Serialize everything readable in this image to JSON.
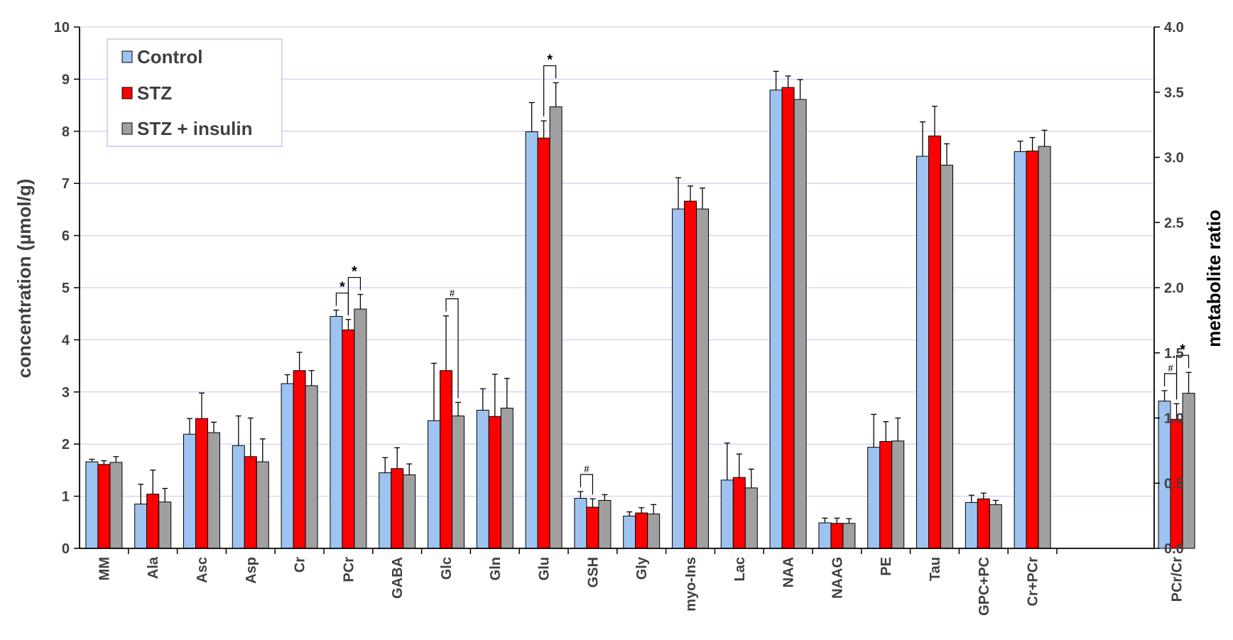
{
  "chart_data": {
    "type": "bar",
    "categories": [
      "MM",
      "Ala",
      "Asc",
      "Asp",
      "Cr",
      "PCr",
      "GABA",
      "Glc",
      "Gln",
      "Glu",
      "GSH",
      "Gly",
      "myo-Ins",
      "Lac",
      "NAA",
      "NAAG",
      "PE",
      "Tau",
      "GPC+PC",
      "Cr+PCr",
      "PCr/Cr"
    ],
    "ylabel": "concentration (µmol/g)",
    "y2label": "metabolite ratio",
    "ylim": [
      0,
      10
    ],
    "y2lim": [
      0,
      4.0
    ],
    "yticks": [
      "0",
      "1",
      "2",
      "3",
      "4",
      "5",
      "6",
      "7",
      "8",
      "9",
      "10"
    ],
    "y2ticks": [
      "0.0",
      "0.5",
      "1.0",
      "1.5",
      "2.0",
      "2.5",
      "3.0",
      "3.5",
      "4.0"
    ],
    "grid": true,
    "legend_position": "top-left",
    "series": [
      {
        "name": "Control",
        "color": "#9dc3f0",
        "values": [
          1.66,
          0.85,
          2.19,
          1.97,
          3.16,
          4.45,
          1.45,
          2.45,
          2.65,
          7.99,
          0.96,
          0.62,
          6.51,
          1.31,
          8.79,
          0.49,
          1.94,
          7.52,
          0.88,
          7.61,
          1.13
        ],
        "errors": [
          0.05,
          0.38,
          0.3,
          0.57,
          0.17,
          0.12,
          0.29,
          1.1,
          0.41,
          0.56,
          0.13,
          0.08,
          0.6,
          0.71,
          0.36,
          0.09,
          0.63,
          0.66,
          0.14,
          0.2,
          0.08
        ]
      },
      {
        "name": "STZ",
        "color": "#ff0000",
        "values": [
          1.61,
          1.04,
          2.49,
          1.76,
          3.41,
          4.19,
          1.53,
          3.41,
          2.53,
          7.87,
          0.79,
          0.68,
          6.66,
          1.36,
          8.84,
          0.48,
          2.05,
          7.91,
          0.95,
          7.62,
          0.99
        ],
        "errors": [
          0.07,
          0.46,
          0.49,
          0.74,
          0.35,
          0.2,
          0.4,
          1.05,
          0.81,
          0.33,
          0.16,
          0.1,
          0.29,
          0.45,
          0.22,
          0.1,
          0.38,
          0.57,
          0.11,
          0.26,
          0.12
        ]
      },
      {
        "name": "STZ + insulin",
        "color": "#a0a0a0",
        "values": [
          1.65,
          0.89,
          2.22,
          1.66,
          3.12,
          4.59,
          1.41,
          2.54,
          2.69,
          8.47,
          0.92,
          0.66,
          6.51,
          1.16,
          8.61,
          0.48,
          2.06,
          7.35,
          0.84,
          7.71,
          1.19
        ],
        "errors": [
          0.11,
          0.26,
          0.2,
          0.44,
          0.29,
          0.28,
          0.21,
          0.26,
          0.57,
          0.46,
          0.11,
          0.18,
          0.4,
          0.36,
          0.38,
          0.09,
          0.44,
          0.41,
          0.08,
          0.31,
          0.16
        ]
      }
    ],
    "secondary_axis_categories": [
      "PCr/Cr"
    ],
    "annotations": [
      {
        "category": "PCr",
        "from": "Control",
        "to": "STZ",
        "mark": "*"
      },
      {
        "category": "PCr",
        "from": "STZ",
        "to": "STZ + insulin",
        "mark": "*"
      },
      {
        "category": "Glc",
        "from": "STZ",
        "to": "STZ + insulin",
        "mark": "#"
      },
      {
        "category": "Glu",
        "from": "STZ",
        "to": "STZ + insulin",
        "mark": "*"
      },
      {
        "category": "GSH",
        "from": "Control",
        "to": "STZ",
        "mark": "#"
      },
      {
        "category": "PCr/Cr",
        "from": "Control",
        "to": "STZ",
        "mark": "#"
      },
      {
        "category": "PCr/Cr",
        "from": "STZ",
        "to": "STZ + insulin",
        "mark": "*"
      }
    ]
  }
}
